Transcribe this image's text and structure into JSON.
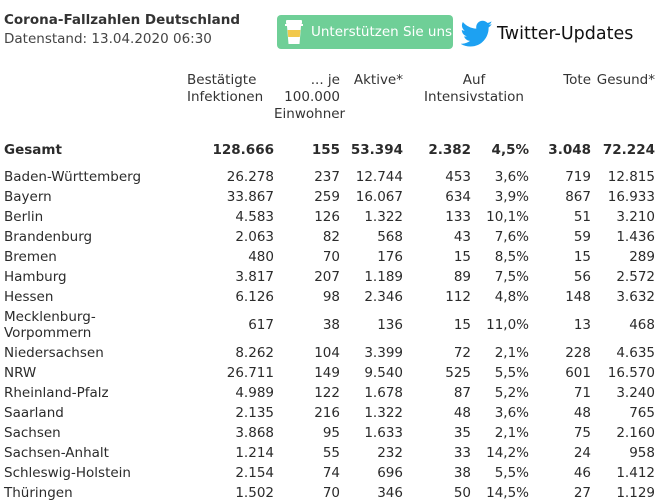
{
  "header": {
    "title": "Corona-Fallzahlen Deutschland",
    "subtitle": "Datenstand: 13.04.2020 06:30"
  },
  "support_button": {
    "label": "Unterstützen Sie uns",
    "icon": "coffee-cup-icon",
    "color": "#6fcf97"
  },
  "twitter_link": {
    "label": "Twitter-Updates",
    "icon": "twitter-bird-icon",
    "color": "#1da1f2"
  },
  "table": {
    "columns": [
      "",
      "Bestätigte Infektionen",
      "... je 100.000 Einwohner",
      "Aktive*",
      "Auf Intensivstation",
      "",
      "Tote",
      "Gesund*"
    ],
    "total": [
      "Gesamt",
      "128.666",
      "155",
      "53.394",
      "2.382",
      "4,5%",
      "3.048",
      "72.224"
    ],
    "rows": [
      [
        "Baden-Württemberg",
        "26.278",
        "237",
        "12.744",
        "453",
        "3,6%",
        "719",
        "12.815"
      ],
      [
        "Bayern",
        "33.867",
        "259",
        "16.067",
        "634",
        "3,9%",
        "867",
        "16.933"
      ],
      [
        "Berlin",
        "4.583",
        "126",
        "1.322",
        "133",
        "10,1%",
        "51",
        "3.210"
      ],
      [
        "Brandenburg",
        "2.063",
        "82",
        "568",
        "43",
        "7,6%",
        "59",
        "1.436"
      ],
      [
        "Bremen",
        "480",
        "70",
        "176",
        "15",
        "8,5%",
        "15",
        "289"
      ],
      [
        "Hamburg",
        "3.817",
        "207",
        "1.189",
        "89",
        "7,5%",
        "56",
        "2.572"
      ],
      [
        "Hessen",
        "6.126",
        "98",
        "2.346",
        "112",
        "4,8%",
        "148",
        "3.632"
      ],
      [
        "Mecklenburg-Vorpommern",
        "617",
        "38",
        "136",
        "15",
        "11,0%",
        "13",
        "468"
      ],
      [
        "Niedersachsen",
        "8.262",
        "104",
        "3.399",
        "72",
        "2,1%",
        "228",
        "4.635"
      ],
      [
        "NRW",
        "26.711",
        "149",
        "9.540",
        "525",
        "5,5%",
        "601",
        "16.570"
      ],
      [
        "Rheinland-Pfalz",
        "4.989",
        "122",
        "1.678",
        "87",
        "5,2%",
        "71",
        "3.240"
      ],
      [
        "Saarland",
        "2.135",
        "216",
        "1.322",
        "48",
        "3,6%",
        "48",
        "765"
      ],
      [
        "Sachsen",
        "3.868",
        "95",
        "1.633",
        "35",
        "2,1%",
        "75",
        "2.160"
      ],
      [
        "Sachsen-Anhalt",
        "1.214",
        "55",
        "232",
        "33",
        "14,2%",
        "24",
        "958"
      ],
      [
        "Schleswig-Holstein",
        "2.154",
        "74",
        "696",
        "38",
        "5,5%",
        "46",
        "1.412"
      ],
      [
        "Thüringen",
        "1.502",
        "70",
        "346",
        "50",
        "14,5%",
        "27",
        "1.129"
      ]
    ]
  }
}
